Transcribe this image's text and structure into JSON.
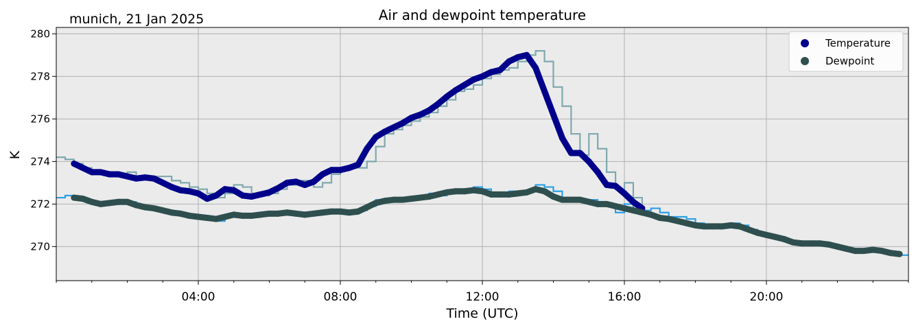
{
  "chart_data": {
    "type": "scatter",
    "title": "Air and dewpoint temperature",
    "subtitle": "munich, 21 Jan 2025",
    "xlabel": "Time (UTC)",
    "ylabel": "K",
    "xlim": [
      0,
      24
    ],
    "ylim": [
      268.4,
      280.3
    ],
    "x_ticks": [
      {
        "x": 4,
        "label": "04:00"
      },
      {
        "x": 8,
        "label": "08:00"
      },
      {
        "x": 12,
        "label": "12:00"
      },
      {
        "x": 16,
        "label": "16:00"
      },
      {
        "x": 20,
        "label": "20:00"
      }
    ],
    "y_ticks": [
      {
        "y": 270,
        "label": "270"
      },
      {
        "y": 272,
        "label": "272"
      },
      {
        "y": 274,
        "label": "274"
      },
      {
        "y": 276,
        "label": "276"
      },
      {
        "y": 278,
        "label": "278"
      },
      {
        "y": 280,
        "label": "280"
      }
    ],
    "grid": true,
    "legend_position": "top-right",
    "background_color": "#ebebeb",
    "raw_series": [
      {
        "color": "#7fa8ae",
        "x": [
          0.0,
          0.25,
          0.5,
          0.75,
          1.0,
          1.25,
          1.5,
          1.75,
          2.0,
          2.25,
          2.5,
          2.75,
          3.0,
          3.25,
          3.5,
          3.75,
          4.0,
          4.25,
          4.5,
          4.75,
          5.0,
          5.25,
          5.5,
          5.75,
          6.0,
          6.25,
          6.5,
          6.75,
          7.0,
          7.25,
          7.5,
          7.75,
          8.0,
          8.25,
          8.5,
          8.75,
          9.0,
          9.25,
          9.5,
          9.75,
          10.0,
          10.25,
          10.5,
          10.75,
          11.0,
          11.25,
          11.5,
          11.75,
          12.0,
          12.25,
          12.5,
          12.75,
          13.0,
          13.25,
          13.5,
          13.75,
          14.0,
          14.25,
          14.5,
          14.75,
          15.0,
          15.25,
          15.5,
          15.75,
          16.0,
          16.25,
          16.5
        ],
        "y": [
          274.2,
          274.1,
          273.9,
          273.7,
          273.6,
          273.5,
          273.5,
          273.4,
          273.5,
          273.3,
          273.2,
          273.3,
          273.3,
          273.1,
          273.0,
          272.8,
          272.7,
          272.5,
          272.3,
          272.5,
          272.9,
          272.8,
          272.5,
          272.4,
          272.5,
          272.7,
          272.9,
          273.1,
          273.1,
          272.8,
          273.0,
          273.4,
          273.6,
          273.7,
          273.7,
          274.0,
          274.7,
          275.3,
          275.5,
          275.7,
          275.9,
          276.1,
          276.3,
          276.6,
          276.9,
          277.3,
          277.4,
          277.6,
          277.9,
          278.1,
          278.3,
          278.4,
          278.7,
          279.0,
          279.2,
          278.7,
          277.5,
          276.6,
          275.3,
          274.3,
          275.3,
          274.6,
          273.5,
          272.7,
          273.0,
          272.3,
          271.8
        ]
      },
      {
        "color": "#2a9fe8",
        "x": [
          0.0,
          0.25,
          0.5,
          0.75,
          1.0,
          1.25,
          1.5,
          1.75,
          2.0,
          2.25,
          2.5,
          2.75,
          3.0,
          3.25,
          3.5,
          3.75,
          4.0,
          4.25,
          4.5,
          4.75,
          5.0,
          5.25,
          5.5,
          5.75,
          6.0,
          6.25,
          6.5,
          6.75,
          7.0,
          7.25,
          7.5,
          7.75,
          8.0,
          8.25,
          8.5,
          8.75,
          9.0,
          9.25,
          9.5,
          9.75,
          10.0,
          10.25,
          10.5,
          10.75,
          11.0,
          11.25,
          11.5,
          11.75,
          12.0,
          12.25,
          12.5,
          12.75,
          13.0,
          13.25,
          13.5,
          13.75,
          14.0,
          14.25,
          14.5,
          14.75,
          15.0,
          15.25,
          15.5,
          15.75,
          16.0,
          16.25,
          16.5,
          16.75,
          17.0,
          17.25,
          17.5,
          17.75,
          18.0,
          18.25,
          18.5,
          18.75,
          19.0,
          19.25,
          19.5,
          19.75,
          20.0,
          20.25,
          20.5,
          20.75,
          21.0,
          21.25,
          21.5,
          21.75,
          22.0,
          22.25,
          22.5,
          22.75,
          23.0,
          23.25,
          23.5,
          23.75,
          24.0
        ],
        "y": [
          272.3,
          272.4,
          272.3,
          272.2,
          272.0,
          272.0,
          272.1,
          272.1,
          272.1,
          271.9,
          271.8,
          271.8,
          271.7,
          271.6,
          271.5,
          271.5,
          271.4,
          271.3,
          271.2,
          271.4,
          271.5,
          271.4,
          271.4,
          271.5,
          271.6,
          271.5,
          271.6,
          271.6,
          271.5,
          271.6,
          271.6,
          271.7,
          271.7,
          271.6,
          271.7,
          271.9,
          272.2,
          272.1,
          272.3,
          272.2,
          272.3,
          272.3,
          272.5,
          272.4,
          272.6,
          272.7,
          272.6,
          272.8,
          272.7,
          272.4,
          272.5,
          272.6,
          272.5,
          272.6,
          272.9,
          272.8,
          272.6,
          272.3,
          272.3,
          272.2,
          272.2,
          271.9,
          272.0,
          271.6,
          272.0,
          271.7,
          271.7,
          271.8,
          271.6,
          271.4,
          271.4,
          271.3,
          271.1,
          271.0,
          271.0,
          271.0,
          271.1,
          271.0,
          270.8,
          270.6,
          270.5,
          270.4,
          270.3,
          270.2,
          270.1,
          270.2,
          270.1,
          270.1,
          270.0,
          269.9,
          269.7,
          269.9,
          269.8,
          269.8,
          269.7,
          269.6,
          269.6
        ]
      }
    ],
    "series": [
      {
        "name": "Temperature",
        "color": "#00008b",
        "x": [
          0.5,
          0.75,
          1.0,
          1.25,
          1.5,
          1.75,
          2.0,
          2.25,
          2.5,
          2.75,
          3.0,
          3.25,
          3.5,
          3.75,
          4.0,
          4.25,
          4.5,
          4.75,
          5.0,
          5.25,
          5.5,
          5.75,
          6.0,
          6.25,
          6.5,
          6.75,
          7.0,
          7.25,
          7.5,
          7.75,
          8.0,
          8.25,
          8.5,
          8.75,
          9.0,
          9.25,
          9.5,
          9.75,
          10.0,
          10.25,
          10.5,
          10.75,
          11.0,
          11.25,
          11.5,
          11.75,
          12.0,
          12.25,
          12.5,
          12.75,
          13.0,
          13.25,
          13.5,
          13.75,
          14.0,
          14.25,
          14.5,
          14.75,
          15.0,
          15.25,
          15.5,
          15.75,
          16.0,
          16.25,
          16.5
        ],
        "y": [
          273.9,
          273.7,
          273.5,
          273.5,
          273.4,
          273.4,
          273.3,
          273.2,
          273.25,
          273.2,
          273.0,
          272.8,
          272.65,
          272.6,
          272.5,
          272.25,
          272.4,
          272.7,
          272.65,
          272.4,
          272.35,
          272.45,
          272.55,
          272.75,
          273.0,
          273.05,
          272.9,
          273.05,
          273.4,
          273.6,
          273.6,
          273.7,
          273.85,
          274.6,
          275.15,
          275.4,
          275.6,
          275.8,
          276.05,
          276.2,
          276.4,
          276.7,
          277.05,
          277.35,
          277.6,
          277.85,
          278.0,
          278.2,
          278.3,
          278.7,
          278.9,
          279.0,
          278.4,
          277.3,
          276.2,
          275.1,
          274.4,
          274.4,
          274.0,
          273.5,
          272.9,
          272.85,
          272.5,
          272.1,
          271.8
        ]
      },
      {
        "name": "Dewpoint",
        "color": "#2f4f4f",
        "x": [
          0.5,
          0.75,
          1.0,
          1.25,
          1.5,
          1.75,
          2.0,
          2.25,
          2.5,
          2.75,
          3.0,
          3.25,
          3.5,
          3.75,
          4.0,
          4.25,
          4.5,
          4.75,
          5.0,
          5.25,
          5.5,
          5.75,
          6.0,
          6.25,
          6.5,
          6.75,
          7.0,
          7.25,
          7.5,
          7.75,
          8.0,
          8.25,
          8.5,
          8.75,
          9.0,
          9.25,
          9.5,
          9.75,
          10.0,
          10.25,
          10.5,
          10.75,
          11.0,
          11.25,
          11.5,
          11.75,
          12.0,
          12.25,
          12.5,
          12.75,
          13.0,
          13.25,
          13.5,
          13.75,
          14.0,
          14.25,
          14.5,
          14.75,
          15.0,
          15.25,
          15.5,
          15.75,
          16.0,
          16.25,
          16.5,
          16.75,
          17.0,
          17.25,
          17.5,
          17.75,
          18.0,
          18.25,
          18.5,
          18.75,
          19.0,
          19.25,
          19.5,
          19.75,
          20.0,
          20.25,
          20.5,
          20.75,
          21.0,
          21.25,
          21.5,
          21.75,
          22.0,
          22.25,
          22.5,
          22.75,
          23.0,
          23.25,
          23.5,
          23.75
        ],
        "y": [
          272.3,
          272.25,
          272.1,
          272.0,
          272.05,
          272.1,
          272.1,
          271.95,
          271.85,
          271.8,
          271.7,
          271.6,
          271.55,
          271.45,
          271.4,
          271.35,
          271.3,
          271.4,
          271.5,
          271.45,
          271.45,
          271.5,
          271.55,
          271.55,
          271.6,
          271.55,
          271.5,
          271.55,
          271.6,
          271.65,
          271.65,
          271.6,
          271.65,
          271.85,
          272.05,
          272.15,
          272.2,
          272.2,
          272.25,
          272.3,
          272.35,
          272.45,
          272.55,
          272.6,
          272.6,
          272.65,
          272.6,
          272.45,
          272.45,
          272.45,
          272.5,
          272.55,
          272.7,
          272.6,
          272.35,
          272.2,
          272.2,
          272.2,
          272.1,
          272.0,
          272.0,
          271.9,
          271.8,
          271.7,
          271.6,
          271.5,
          271.35,
          271.3,
          271.2,
          271.1,
          271.0,
          270.95,
          270.95,
          270.95,
          271.0,
          270.95,
          270.8,
          270.65,
          270.55,
          270.45,
          270.35,
          270.2,
          270.15,
          270.15,
          270.15,
          270.1,
          270.0,
          269.9,
          269.8,
          269.8,
          269.85,
          269.8,
          269.7,
          269.65
        ]
      }
    ]
  }
}
